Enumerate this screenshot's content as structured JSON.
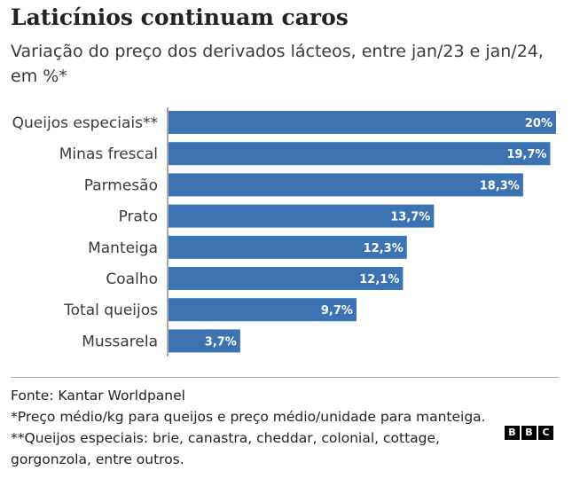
{
  "header": {
    "title": "Laticínios continuam caros",
    "subtitle": "Variação do preço dos derivados lácteos, entre jan/23 e jan/24, em %*"
  },
  "chart_data": {
    "type": "bar",
    "orientation": "horizontal",
    "categories": [
      "Queijos especiais**",
      "Minas frescal",
      "Parmesão",
      "Prato",
      "Manteiga",
      "Coalho",
      "Total queijos",
      "Mussarela"
    ],
    "values": [
      20,
      19.7,
      18.3,
      13.7,
      12.3,
      12.1,
      9.7,
      3.7
    ],
    "value_labels": [
      "20%",
      "19,7%",
      "18,3%",
      "13,7%",
      "12,3%",
      "12,1%",
      "9,7%",
      "3,7%"
    ],
    "bar_color": "#3c73b3",
    "xlim": [
      0,
      20
    ],
    "grid": false,
    "legend": "none"
  },
  "footer": {
    "source": "Fonte: Kantar Worldpanel",
    "note1": "*Preço médio/kg para queijos e preço médio/unidade para manteiga.",
    "note2": "**Queijos especiais: brie, canastra, cheddar, colonial, cottage, gorgonzola, entre outros."
  },
  "logo": {
    "letters": [
      "B",
      "B",
      "C"
    ]
  }
}
